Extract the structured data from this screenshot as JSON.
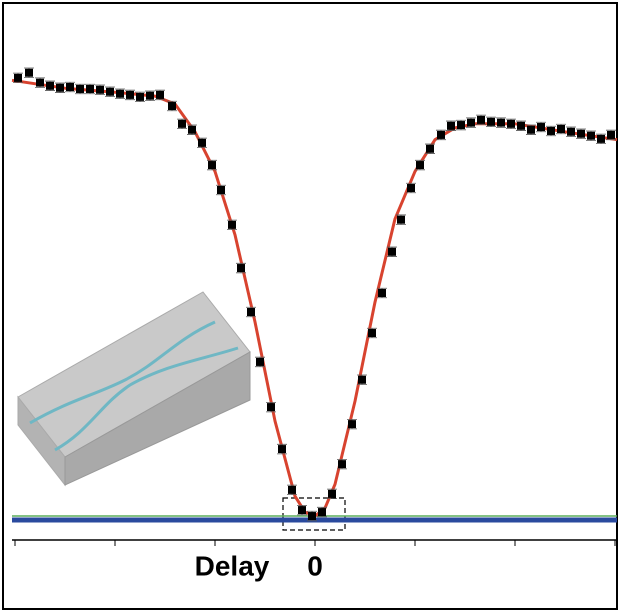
{
  "chart_data": {
    "type": "scatter",
    "x_label": "Delay",
    "xlim": [
      -3.03,
      3.02
    ],
    "ylim": [
      0,
      1.3
    ],
    "xticks": [
      -3,
      -2,
      -1,
      0,
      1,
      2,
      3
    ],
    "xtick_labels": [
      null,
      null,
      null,
      "0",
      null,
      null,
      null
    ],
    "hlines": [
      {
        "value": 0,
        "color": "#2a4a9e"
      },
      {
        "value": 0.01,
        "color": "#5cae5c"
      }
    ],
    "series": [
      {
        "kind": "points",
        "color": "#000000",
        "x": [
          -2.97,
          -2.86,
          -2.75,
          -2.65,
          -2.55,
          -2.45,
          -2.35,
          -2.25,
          -2.15,
          -2.05,
          -1.95,
          -1.85,
          -1.75,
          -1.65,
          -1.55,
          -1.43,
          -1.33,
          -1.23,
          -1.13,
          -1.03,
          -0.94,
          -0.83,
          -0.74,
          -0.64,
          -0.55,
          -0.44,
          -0.33,
          -0.23,
          -0.13,
          -0.03,
          0.07,
          0.17,
          0.27,
          0.37,
          0.47,
          0.57,
          0.67,
          0.77,
          0.86,
          0.96,
          1.05,
          1.15,
          1.26,
          1.36,
          1.46,
          1.56,
          1.66,
          1.76,
          1.86,
          1.96,
          2.06,
          2.16,
          2.26,
          2.36,
          2.46,
          2.56,
          2.66,
          2.76,
          2.86,
          2.96
        ],
        "values": [
          1.116,
          1.129,
          1.104,
          1.096,
          1.091,
          1.093,
          1.088,
          1.088,
          1.086,
          1.081,
          1.076,
          1.073,
          1.068,
          1.071,
          1.073,
          1.045,
          1.0,
          0.985,
          0.952,
          0.896,
          0.833,
          0.745,
          0.636,
          0.525,
          0.399,
          0.285,
          0.179,
          0.076,
          0.025,
          0.01,
          0.02,
          0.066,
          0.141,
          0.242,
          0.354,
          0.472,
          0.573,
          0.677,
          0.758,
          0.838,
          0.896,
          0.937,
          0.972,
          0.995,
          0.997,
          1.003,
          1.01,
          1.005,
          1.003,
          1.0,
          0.995,
          0.985,
          0.992,
          0.982,
          0.987,
          0.98,
          0.975,
          0.97,
          0.962,
          0.972
        ],
        "errors": [
          0.012,
          0.012,
          0.012,
          0.012,
          0.012,
          0.012,
          0.012,
          0.012,
          0.012,
          0.012,
          0.012,
          0.012,
          0.012,
          0.012,
          0.012,
          0.012,
          0.012,
          0.012,
          0.012,
          0.012,
          0.012,
          0.012,
          0.012,
          0.012,
          0.012,
          0.012,
          0.012,
          0.012,
          0.012,
          0.012,
          0.012,
          0.012,
          0.012,
          0.012,
          0.012,
          0.012,
          0.012,
          0.012,
          0.012,
          0.012,
          0.012,
          0.012,
          0.012,
          0.012,
          0.012,
          0.012,
          0.012,
          0.012,
          0.012,
          0.012,
          0.012,
          0.012,
          0.012,
          0.012,
          0.012,
          0.012,
          0.012,
          0.012,
          0.012,
          0.012
        ]
      },
      {
        "kind": "line",
        "color": "#d8432f",
        "x": [
          -3.03,
          -2.5,
          -2,
          -1.6,
          -1.4,
          -1.2,
          -1,
          -0.8,
          -0.6,
          -0.4,
          -0.2,
          -0.1,
          0,
          0.1,
          0.2,
          0.4,
          0.6,
          0.8,
          1,
          1.2,
          1.4,
          1.6,
          2,
          2.5,
          3.02
        ],
        "values": [
          1.11,
          1.09,
          1.08,
          1.07,
          1.05,
          0.98,
          0.88,
          0.72,
          0.5,
          0.25,
          0.06,
          0.02,
          0.01,
          0.03,
          0.09,
          0.3,
          0.55,
          0.76,
          0.88,
          0.96,
          0.99,
          1.0,
          1.0,
          0.98,
          0.96
        ]
      }
    ]
  }
}
